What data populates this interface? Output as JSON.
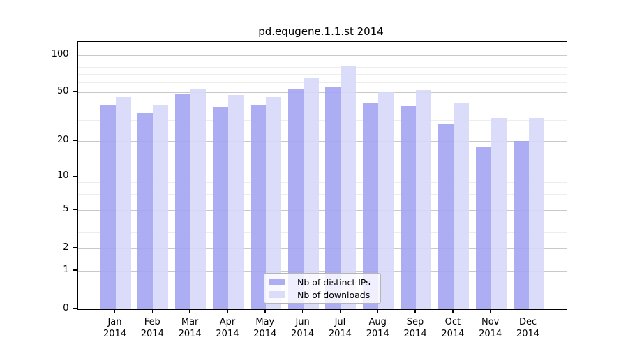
{
  "title": "pd.equgene.1.1.st 2014",
  "colors": {
    "distinct_ips": "#a4a4f3",
    "downloads": "#d7d7fa",
    "grid_major": "#c9c9c9",
    "grid_minor": "#ededed",
    "axis": "#000000"
  },
  "chart_data": {
    "type": "bar",
    "title": "pd.equgene.1.1.st 2014",
    "categories": [
      "Jan 2014",
      "Feb 2014",
      "Mar 2014",
      "Apr 2014",
      "May 2014",
      "Jun 2014",
      "Jul 2014",
      "Aug 2014",
      "Sep 2014",
      "Oct 2014",
      "Nov 2014",
      "Dec 2014"
    ],
    "series": [
      {
        "name": "Nb of distinct IPs",
        "color": "#a4a4f3",
        "values": [
          40,
          34,
          49,
          38,
          40,
          54,
          56,
          41,
          39,
          28,
          18,
          20
        ]
      },
      {
        "name": "Nb of downloads",
        "color": "#d7d7fa",
        "values": [
          46,
          40,
          53,
          48,
          46,
          65,
          81,
          50,
          52,
          41,
          31,
          31
        ]
      }
    ],
    "xlabel": "",
    "ylabel": "",
    "yscale": "log1p",
    "ylim": [
      0,
      128
    ],
    "y_major_ticks": [
      100,
      50,
      20,
      10,
      5,
      2,
      1,
      0
    ],
    "y_minor_gridlines": [
      90,
      80,
      70,
      60,
      40,
      30,
      9,
      8,
      7,
      6,
      4,
      3
    ],
    "grid": true,
    "legend_position": "bottom-center"
  },
  "legend": {
    "items": [
      {
        "label": "Nb of distinct IPs"
      },
      {
        "label": "Nb of downloads"
      }
    ]
  }
}
